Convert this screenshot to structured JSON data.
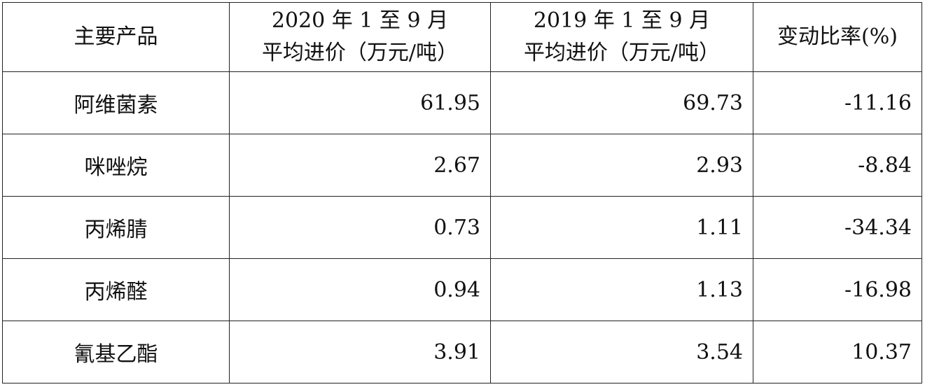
{
  "table": {
    "header": [
      "主要产品",
      [
        "2020 年 1 至 9 月",
        "平均进价（万元/吨）"
      ],
      [
        "2019 年 1 至 9 月",
        "平均进价（万元/吨）"
      ],
      "变动比率(%)"
    ],
    "rows": [
      [
        "阿维菌素",
        "61.95",
        "69.73",
        "-11.16"
      ],
      [
        "咪唑烷",
        "2.67",
        "2.93",
        "-8.84"
      ],
      [
        "丙烯腈",
        "0.73",
        "1.11",
        "-34.34"
      ],
      [
        "丙烯醛",
        "0.94",
        "1.13",
        "-16.98"
      ],
      [
        "氰基乙酯",
        "3.91",
        "3.54",
        "10.37"
      ]
    ]
  }
}
